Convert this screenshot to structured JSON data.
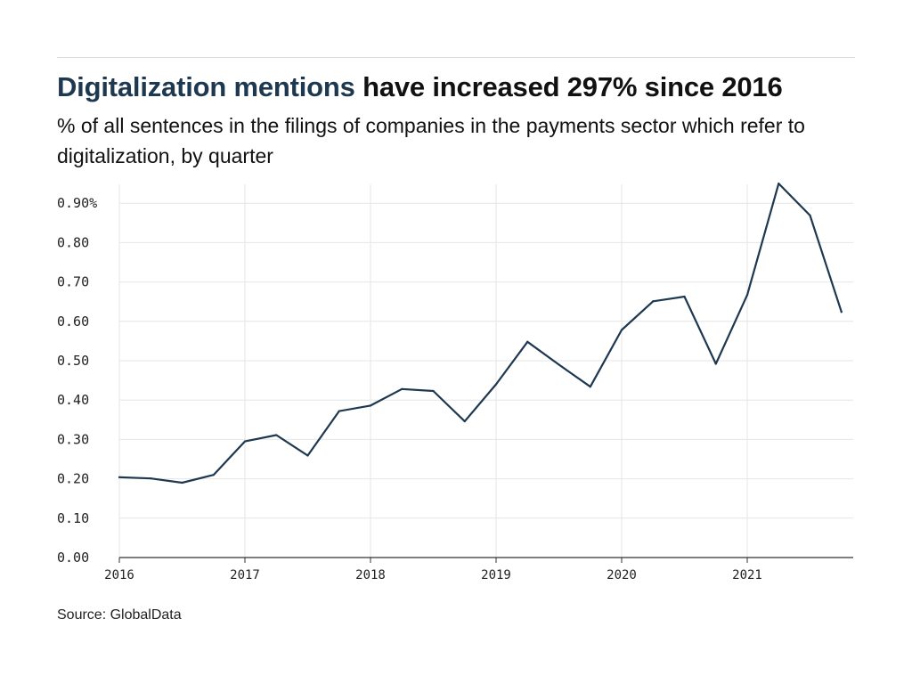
{
  "header": {
    "title_highlight": "Digitalization mentions",
    "title_rest": " have increased 297% since 2016",
    "subtitle": "% of all sentences in the filings of companies in the payments sector which refer to digitalization, by quarter"
  },
  "footer": {
    "source": "Source: GlobalData"
  },
  "colors": {
    "line": "#1e3850",
    "grid": "#e6e6e6",
    "axis": "#333333"
  },
  "chart_data": {
    "type": "line",
    "title": "Digitalization mentions have increased 297% since 2016",
    "subtitle": "% of all sentences in the filings of companies in the payments sector which refer to digitalization, by quarter",
    "ylim": [
      0,
      0.95
    ],
    "y_ticks": [
      0,
      0.1,
      0.2,
      0.3,
      0.4,
      0.5,
      0.6,
      0.7,
      0.8,
      0.9
    ],
    "y_tick_labels": [
      "0.00",
      "0.10",
      "0.20",
      "0.30",
      "0.40",
      "0.50",
      "0.60",
      "0.70",
      "0.80",
      "0.90%"
    ],
    "x_ticks": [
      "2016",
      "2017",
      "2018",
      "2019",
      "2020",
      "2021"
    ],
    "grid": true,
    "series": [
      {
        "x": [
          "2016 Q1",
          "2016 Q2",
          "2016 Q3",
          "2016 Q4",
          "2017 Q1",
          "2017 Q2",
          "2017 Q3",
          "2017 Q4",
          "2018 Q1",
          "2018 Q2",
          "2018 Q3",
          "2018 Q4",
          "2019 Q1",
          "2019 Q2",
          "2019 Q3",
          "2019 Q4",
          "2020 Q1",
          "2020 Q2",
          "2020 Q3",
          "2020 Q4",
          "2021 Q1",
          "2021 Q2",
          "2021 Q3",
          "2021 Q4"
        ],
        "values": [
          0.204,
          0.201,
          0.19,
          0.21,
          0.295,
          0.311,
          0.259,
          0.372,
          0.386,
          0.428,
          0.423,
          0.346,
          0.44,
          0.548,
          0.49,
          0.434,
          0.578,
          0.651,
          0.663,
          0.492,
          0.667,
          0.95,
          0.869,
          0.624
        ]
      }
    ]
  }
}
